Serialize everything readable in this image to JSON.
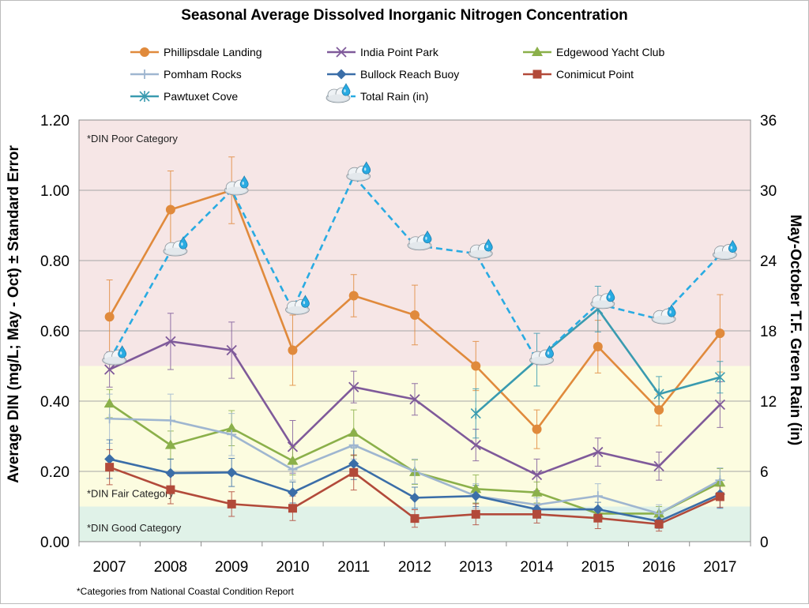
{
  "chart_data": {
    "type": "line",
    "title": "Seasonal Average Dissolved Inorganic Nitrogen Concentration",
    "ylabel": "Average DIN (mg/L; May - Oct) ± Standard Error",
    "y2label": "May-October T.F. Green Rain (in)",
    "footnote": "*Categories from National Coastal Condition Report",
    "categories": [
      "2007",
      "2008",
      "2009",
      "2010",
      "2011",
      "2012",
      "2013",
      "2014",
      "2015",
      "2016",
      "2017"
    ],
    "ylim": [
      0,
      1.2
    ],
    "y_ticks": [
      "0.00",
      "0.20",
      "0.40",
      "0.60",
      "0.80",
      "1.00",
      "1.20"
    ],
    "y2lim": [
      0,
      36
    ],
    "y2_ticks": [
      "0",
      "6",
      "12",
      "18",
      "24",
      "30",
      "36"
    ],
    "grid": true,
    "legend_position": "top",
    "bands": [
      {
        "label": "*DIN Poor Category",
        "from": 0.5,
        "to": 1.2,
        "color": "#f6e6e6"
      },
      {
        "label": "*DIN Fair Category",
        "from": 0.1,
        "to": 0.5,
        "color": "#fcfce0"
      },
      {
        "label": "*DIN Good Category",
        "from": 0.0,
        "to": 0.1,
        "color": "#e0f2e8"
      }
    ],
    "series": [
      {
        "name": "Phillipsdale Landing",
        "color": "#e08a3c",
        "marker": "circle",
        "values": [
          0.64,
          0.945,
          1.0,
          0.545,
          0.7,
          0.645,
          0.5,
          0.32,
          0.555,
          0.375,
          0.593
        ],
        "errors": [
          0.105,
          0.11,
          0.095,
          0.1,
          0.06,
          0.085,
          0.07,
          0.055,
          0.075,
          0.045,
          0.11
        ]
      },
      {
        "name": "India Point Park",
        "color": "#7f5a9a",
        "marker": "x",
        "values": [
          0.49,
          0.57,
          0.545,
          0.27,
          0.44,
          0.405,
          0.275,
          0.19,
          0.255,
          0.215,
          0.39
        ],
        "errors": [
          0.05,
          0.08,
          0.08,
          0.075,
          0.045,
          0.045,
          0.045,
          0.045,
          0.04,
          0.04,
          0.065
        ]
      },
      {
        "name": "Edgewood Yacht Club",
        "color": "#8bb04a",
        "marker": "triangle",
        "values": [
          0.393,
          0.275,
          0.323,
          0.23,
          0.31,
          0.198,
          0.15,
          0.14,
          0.08,
          0.08,
          0.168
        ],
        "errors": [
          0.04,
          0.04,
          0.05,
          0.04,
          0.065,
          0.035,
          0.04,
          0.03,
          0.015,
          0.02,
          0.04
        ]
      },
      {
        "name": "Pomham Rocks",
        "color": "#9fb6d0",
        "marker": "plus",
        "values": [
          0.35,
          0.345,
          0.305,
          0.205,
          0.275,
          0.2,
          0.13,
          0.105,
          0.13,
          0.08,
          0.175
        ],
        "errors": [
          0.07,
          0.075,
          0.06,
          0.03,
          0.04,
          0.035,
          0.035,
          0.02,
          0.035,
          0.025,
          0.035
        ]
      },
      {
        "name": "Bullock Reach Buoy",
        "color": "#3b6ea8",
        "marker": "diamond",
        "values": [
          0.235,
          0.195,
          0.197,
          0.14,
          0.222,
          0.125,
          0.13,
          0.092,
          0.092,
          0.058,
          0.135
        ],
        "errors": [
          0.055,
          0.04,
          0.04,
          0.03,
          0.045,
          0.03,
          0.03,
          0.015,
          0.02,
          0.02,
          0.04
        ]
      },
      {
        "name": "Conimicut Point",
        "color": "#b24a3a",
        "marker": "square",
        "values": [
          0.212,
          0.148,
          0.107,
          0.095,
          0.197,
          0.066,
          0.078,
          0.078,
          0.067,
          0.05,
          0.128
        ],
        "errors": [
          0.05,
          0.04,
          0.035,
          0.035,
          0.05,
          0.025,
          0.03,
          0.025,
          0.03,
          0.02,
          0.03
        ]
      },
      {
        "name": "Pawtuxet Cove",
        "color": "#3a9bb0",
        "marker": "star",
        "values": [
          null,
          null,
          null,
          null,
          null,
          null,
          0.365,
          0.518,
          0.662,
          0.42,
          0.468
        ],
        "errors": [
          null,
          null,
          null,
          null,
          null,
          null,
          0.07,
          0.075,
          0.065,
          0.05,
          0.045
        ]
      },
      {
        "name": "Total Rain (in)",
        "color": "#29abe2",
        "marker": "rain-cloud",
        "axis": "right",
        "dashed": true,
        "values": [
          15.5,
          24.8,
          30.0,
          19.8,
          31.2,
          25.3,
          24.6,
          15.5,
          20.3,
          19.0,
          24.5
        ]
      }
    ]
  }
}
